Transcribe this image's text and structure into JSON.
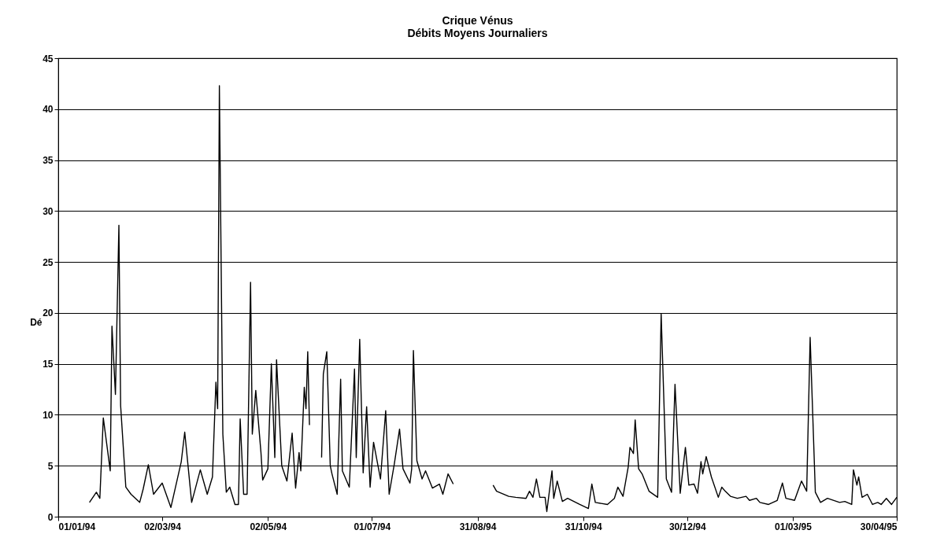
{
  "chart_data": {
    "type": "line",
    "title": "Crique Vénus",
    "subtitle": "Débits Moyens Journaliers",
    "ylabel": "Dé",
    "xlim": [
      "1994-01-01",
      "1995-04-30"
    ],
    "xticks": [
      {
        "value": "1994-01-01",
        "label": "01/01/94"
      },
      {
        "value": "1994-03-02",
        "label": "02/03/94"
      },
      {
        "value": "1994-05-02",
        "label": "02/05/94"
      },
      {
        "value": "1994-07-01",
        "label": "01/07/94"
      },
      {
        "value": "1994-08-31",
        "label": "31/08/94"
      },
      {
        "value": "1994-10-31",
        "label": "31/10/94"
      },
      {
        "value": "1994-12-30",
        "label": "30/12/94"
      },
      {
        "value": "1995-03-01",
        "label": "01/03/95"
      },
      {
        "value": "1995-04-30",
        "label": "30/04/95"
      }
    ],
    "ylim": [
      0,
      45
    ],
    "yticks": [
      0,
      5,
      10,
      15,
      20,
      25,
      30,
      35,
      40,
      45
    ],
    "grid": "y",
    "marker": "none",
    "line_style": "solid",
    "x": [
      "1994-01-19",
      "1994-01-23",
      "1994-01-25",
      "1994-01-27",
      "1994-01-31",
      "1994-02-01",
      "1994-02-03",
      "1994-02-05",
      "1994-02-06",
      "1994-02-09",
      "1994-02-12",
      "1994-02-17",
      "1994-02-19",
      "1994-02-22",
      "1994-02-25",
      "1994-03-02",
      "1994-03-07",
      "1994-03-13",
      "1994-03-15",
      "1994-03-19",
      "1994-03-24",
      "1994-03-28",
      "1994-03-31",
      "1994-04-02",
      "1994-04-03",
      "1994-04-04",
      "1994-04-06",
      "1994-04-08",
      "1994-04-10",
      "1994-04-13",
      "1994-04-15",
      "1994-04-16",
      "1994-04-18",
      "1994-04-20",
      "1994-04-22",
      "1994-04-23",
      "1994-04-25",
      "1994-04-28",
      "1994-04-29",
      "1994-05-02",
      "1994-05-04",
      "1994-05-06",
      "1994-05-07",
      "1994-05-10",
      "1994-05-13",
      "1994-05-16",
      "1994-05-18",
      "1994-05-20",
      "1994-05-21",
      "1994-05-23",
      "1994-05-24",
      "1994-05-25",
      "1994-05-26",
      "1994-05-29",
      "1994-06-02",
      "1994-06-03",
      "1994-06-05",
      "1994-06-07",
      "1994-06-08",
      "1994-06-11",
      "1994-06-13",
      "1994-06-14",
      "1994-06-18",
      "1994-06-21",
      "1994-06-22",
      "1994-06-24",
      "1994-06-26",
      "1994-06-28",
      "1994-06-30",
      "1994-07-02",
      "1994-07-06",
      "1994-07-09",
      "1994-07-11",
      "1994-07-14",
      "1994-07-17",
      "1994-07-19",
      "1994-07-23",
      "1994-07-24",
      "1994-07-25",
      "1994-07-27",
      "1994-07-30",
      "1994-08-01",
      "1994-08-05",
      "1994-08-09",
      "1994-08-11",
      "1994-08-14",
      "1994-08-17",
      "1994-09-01",
      "1994-09-09",
      "1994-09-11",
      "1994-09-18",
      "1994-09-22",
      "1994-09-28",
      "1994-09-30",
      "1994-10-02",
      "1994-10-04",
      "1994-10-06",
      "1994-10-09",
      "1994-10-10",
      "1994-10-13",
      "1994-10-14",
      "1994-10-16",
      "1994-10-19",
      "1994-10-22",
      "1994-10-29",
      "1994-11-03",
      "1994-11-05",
      "1994-11-07",
      "1994-11-14",
      "1994-11-18",
      "1994-11-20",
      "1994-11-23",
      "1994-11-26",
      "1994-11-27",
      "1994-11-29",
      "1994-11-30",
      "1994-12-02",
      "1994-12-04",
      "1994-12-08",
      "1994-12-13",
      "1994-12-15",
      "1994-12-18",
      "1994-12-21",
      "1994-12-23",
      "1994-12-26",
      "1994-12-29",
      "1994-12-31",
      "1995-01-03",
      "1995-01-05",
      "1995-01-07",
      "1995-01-08",
      "1995-01-10",
      "1995-01-13",
      "1995-01-17",
      "1995-01-19",
      "1995-01-21",
      "1995-01-24",
      "1995-01-28",
      "1995-02-02",
      "1995-02-04",
      "1995-02-08",
      "1995-02-10",
      "1995-02-15",
      "1995-02-20",
      "1995-02-23",
      "1995-02-25",
      "1995-03-02",
      "1995-03-06",
      "1995-03-09",
      "1995-03-11",
      "1995-03-14",
      "1995-03-17",
      "1995-03-21",
      "1995-03-28",
      "1995-03-31",
      "1995-04-04",
      "1995-04-05",
      "1995-04-07",
      "1995-04-08",
      "1995-04-10",
      "1995-04-13",
      "1995-04-16",
      "1995-04-19",
      "1995-04-21",
      "1995-04-24",
      "1995-04-27",
      "1995-04-30"
    ],
    "series": [
      {
        "color": "#000000",
        "values": [
          1.4,
          2.4,
          1.8,
          9.7,
          4.5,
          18.7,
          12.0,
          28.6,
          10.9,
          2.9,
          2.2,
          1.4,
          2.7,
          5.1,
          2.2,
          3.3,
          0.9,
          5.4,
          8.3,
          1.4,
          4.6,
          2.2,
          3.9,
          13.2,
          10.6,
          42.3,
          8.1,
          2.4,
          2.9,
          1.2,
          1.2,
          9.6,
          2.2,
          2.2,
          23.0,
          8.1,
          12.4,
          6.3,
          3.6,
          4.7,
          15.0,
          5.8,
          15.4,
          5.0,
          3.5,
          8.2,
          2.8,
          6.3,
          4.5,
          12.7,
          10.6,
          16.2,
          9.0,
          null,
          5.8,
          14.0,
          16.2,
          5.0,
          4.2,
          2.2,
          13.5,
          4.5,
          2.9,
          14.5,
          5.8,
          17.4,
          4.3,
          10.8,
          2.9,
          7.3,
          3.7,
          10.4,
          2.2,
          5.2,
          8.6,
          4.7,
          3.3,
          4.7,
          16.3,
          5.5,
          3.7,
          4.5,
          2.8,
          3.2,
          2.2,
          4.2,
          3.2,
          null,
          3.1,
          2.5,
          2.0,
          1.9,
          1.8,
          2.5,
          1.9,
          3.7,
          1.9,
          1.9,
          0.5,
          4.5,
          1.8,
          3.5,
          1.5,
          1.8,
          1.2,
          0.8,
          3.2,
          1.4,
          1.2,
          1.8,
          2.9,
          2.0,
          4.9,
          6.8,
          6.2,
          9.5,
          4.7,
          4.2,
          2.5,
          1.9,
          19.9,
          3.7,
          2.4,
          13.0,
          2.3,
          6.8,
          3.1,
          3.2,
          2.3,
          5.4,
          4.2,
          5.9,
          3.9,
          1.9,
          2.9,
          2.5,
          2.0,
          1.8,
          2.0,
          1.6,
          1.8,
          1.4,
          1.2,
          1.6,
          3.3,
          1.8,
          1.6,
          3.5,
          2.5,
          17.6,
          2.4,
          1.4,
          1.8,
          1.4,
          1.5,
          1.2,
          4.6,
          3.1,
          3.9,
          1.9,
          2.2,
          1.2,
          1.4,
          1.2,
          1.8,
          1.2,
          1.9
        ]
      }
    ]
  }
}
